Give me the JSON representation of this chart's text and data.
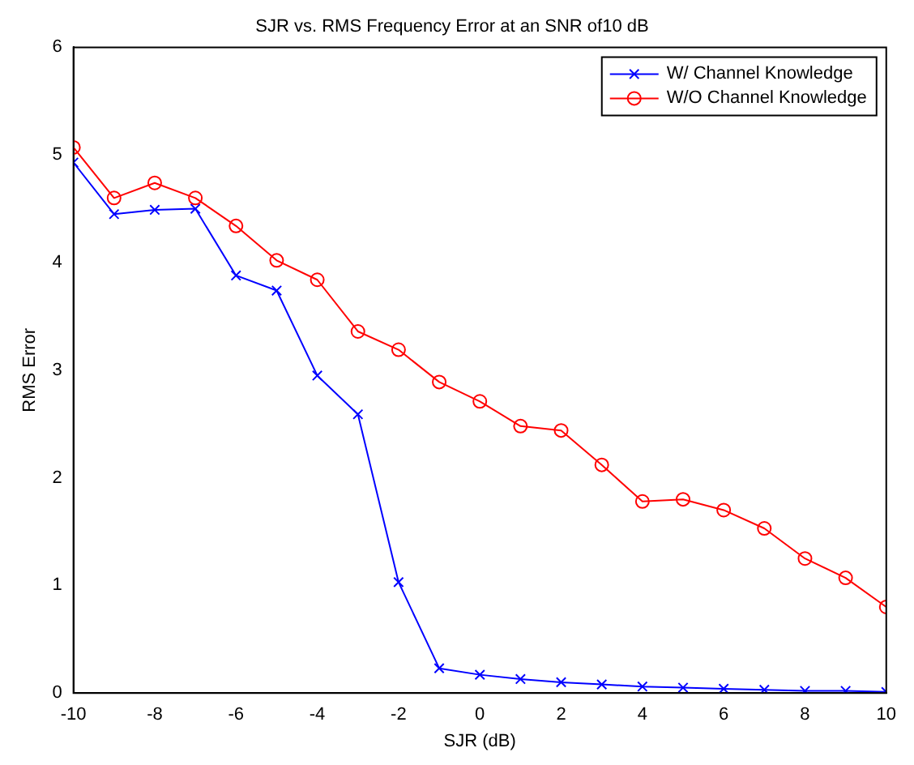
{
  "chart_data": {
    "type": "line",
    "title": "SJR vs. RMS Frequency Error at an SNR of10 dB",
    "xlabel": "SJR (dB)",
    "ylabel": "RMS Error",
    "x": [
      -10,
      -9,
      -8,
      -7,
      -6,
      -5,
      -4,
      -3,
      -2,
      -1,
      0,
      1,
      2,
      3,
      4,
      5,
      6,
      7,
      8,
      9,
      10
    ],
    "series": [
      {
        "name": "W/ Channel Knowledge",
        "color": "#0000ff",
        "marker": "cross",
        "values": [
          4.93,
          4.45,
          4.49,
          4.5,
          3.88,
          3.74,
          2.95,
          2.59,
          1.03,
          0.23,
          0.17,
          0.13,
          0.1,
          0.08,
          0.06,
          0.05,
          0.04,
          0.03,
          0.02,
          0.02,
          0.01
        ]
      },
      {
        "name": "W/O Channel Knowledge",
        "color": "#ff0000",
        "marker": "circle",
        "values": [
          5.07,
          4.6,
          4.74,
          4.6,
          4.34,
          4.02,
          3.84,
          3.36,
          3.19,
          2.89,
          2.71,
          2.48,
          2.44,
          2.12,
          1.78,
          1.8,
          1.7,
          1.53,
          1.25,
          1.07,
          0.8
        ]
      }
    ],
    "xlim": [
      -10,
      10
    ],
    "xticks": [
      -10,
      -8,
      -6,
      -4,
      -2,
      0,
      2,
      4,
      6,
      8,
      10
    ],
    "ylim": [
      0,
      6
    ],
    "yticks": [
      0,
      1,
      2,
      3,
      4,
      5,
      6
    ],
    "grid": false,
    "legend": "top right",
    "line_style": "solid"
  }
}
